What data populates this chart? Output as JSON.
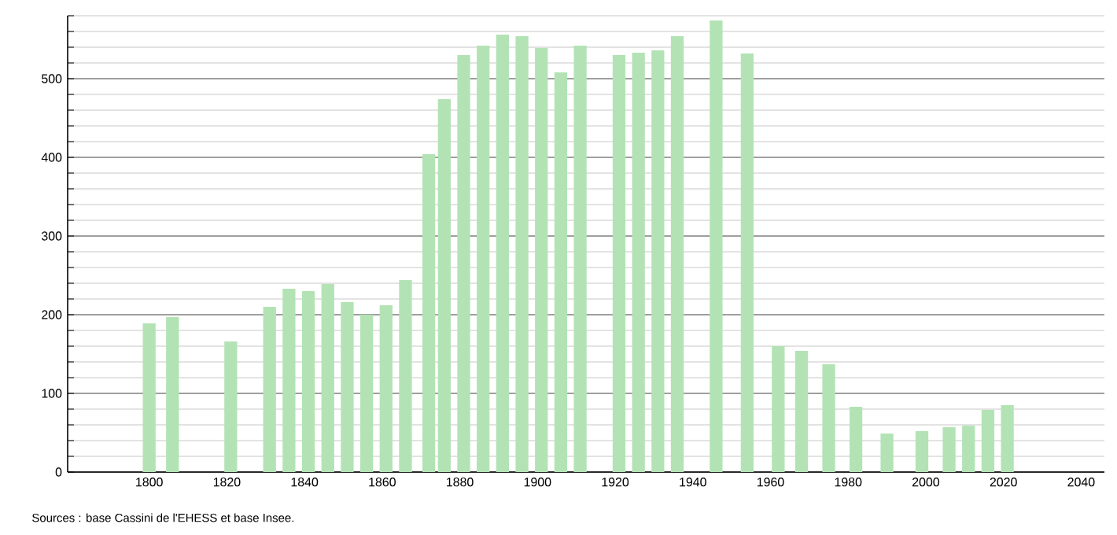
{
  "chart_data": {
    "type": "bar",
    "x": [
      1800,
      1806,
      1821,
      1831,
      1836,
      1841,
      1846,
      1851,
      1856,
      1861,
      1866,
      1872,
      1876,
      1881,
      1886,
      1891,
      1896,
      1901,
      1906,
      1911,
      1921,
      1926,
      1931,
      1936,
      1946,
      1954,
      1962,
      1968,
      1975,
      1982,
      1990,
      1999,
      2006,
      2011,
      2016,
      2021
    ],
    "values": [
      189,
      197,
      166,
      210,
      233,
      230,
      239,
      216,
      200,
      212,
      244,
      404,
      474,
      530,
      542,
      556,
      554,
      539,
      508,
      542,
      530,
      533,
      536,
      554,
      574,
      532,
      160,
      154,
      137,
      83,
      49,
      52,
      57,
      59,
      79,
      85
    ],
    "color": "#b3e3b5",
    "xlim": [
      1779,
      2046
    ],
    "xticks": [
      1800,
      1820,
      1840,
      1860,
      1880,
      1900,
      1920,
      1940,
      1960,
      1980,
      2000,
      2020,
      2040
    ],
    "ylim": [
      0,
      580
    ],
    "yticks": [
      0,
      {
        "value": 20,
        "label": null
      },
      {
        "value": 40,
        "label": null
      },
      {
        "value": 60,
        "label": null
      },
      {
        "value": 80,
        "label": null
      },
      100,
      {
        "value": 120,
        "label": null
      },
      {
        "value": 140,
        "label": null
      },
      {
        "value": 160,
        "label": null
      },
      {
        "value": 180,
        "label": null
      },
      200,
      {
        "value": 220,
        "label": null
      },
      {
        "value": 240,
        "label": null
      },
      {
        "value": 260,
        "label": null
      },
      {
        "value": 280,
        "label": null
      },
      300,
      {
        "value": 320,
        "label": null
      },
      {
        "value": 340,
        "label": null
      },
      {
        "value": 360,
        "label": null
      },
      {
        "value": 380,
        "label": null
      },
      400,
      {
        "value": 420,
        "label": null
      },
      {
        "value": 440,
        "label": null
      },
      {
        "value": 460,
        "label": null
      },
      {
        "value": 480,
        "label": null
      },
      500,
      {
        "value": 520,
        "label": null
      },
      {
        "value": 540,
        "label": null
      },
      {
        "value": 560,
        "label": null
      },
      {
        "value": 580,
        "label": null
      }
    ],
    "grid": "y",
    "annotations": [
      "Sources : base Cassini de l'EHESS et base Insee."
    ]
  }
}
